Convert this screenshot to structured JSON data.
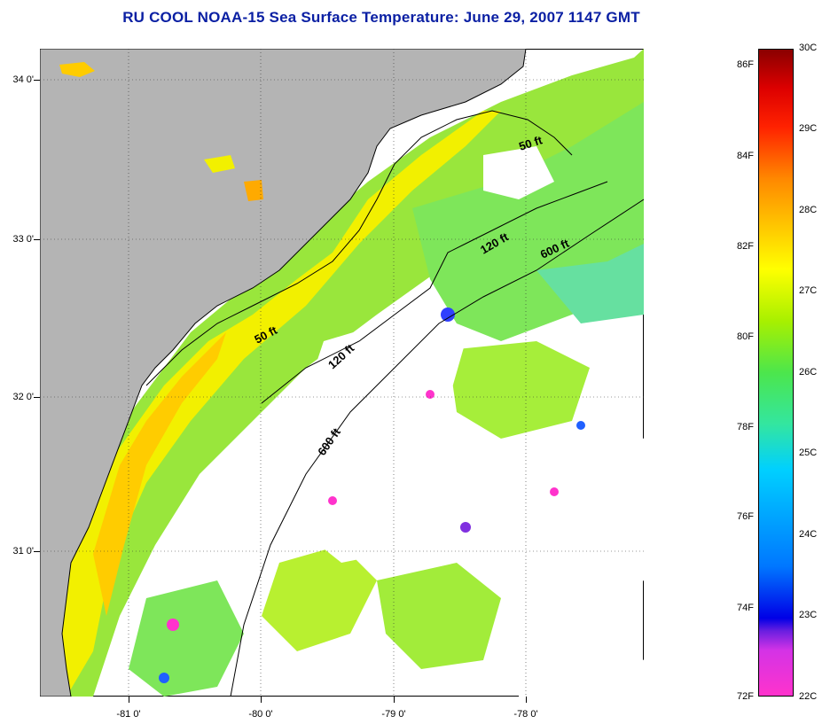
{
  "title": "RU COOL  NOAA-15  Sea Surface Temperature:  June 29, 2007 1147 GMT",
  "map": {
    "lat_labels": [
      "34 0'",
      "33 0'",
      "32 0'",
      "31 0'"
    ],
    "lon_labels": [
      "-81 0'",
      "-80 0'",
      "-79 0'",
      "-78 0'"
    ],
    "contour_labels": [
      "50 ft",
      "50 ft",
      "120 ft",
      "120 ft",
      "600 ft",
      "600 ft"
    ],
    "colors": {
      "land": "#b4b4b4",
      "cloud": "#ffffff",
      "coast": "#000000",
      "grid": "#333333"
    }
  },
  "colorbar": {
    "fahrenheit_labels": [
      "86F",
      "84F",
      "82F",
      "80F",
      "78F",
      "76F",
      "74F",
      "72F"
    ],
    "celsius_labels": [
      "30C",
      "29C",
      "28C",
      "27C",
      "26C",
      "25C",
      "24C",
      "23C",
      "22C"
    ],
    "colors": [
      "#ff33cc",
      "#6a1fe0",
      "#0000e6",
      "#00d0ff",
      "#4ce64c",
      "#ffff00",
      "#ff8800",
      "#dd0000",
      "#8a0000"
    ]
  }
}
